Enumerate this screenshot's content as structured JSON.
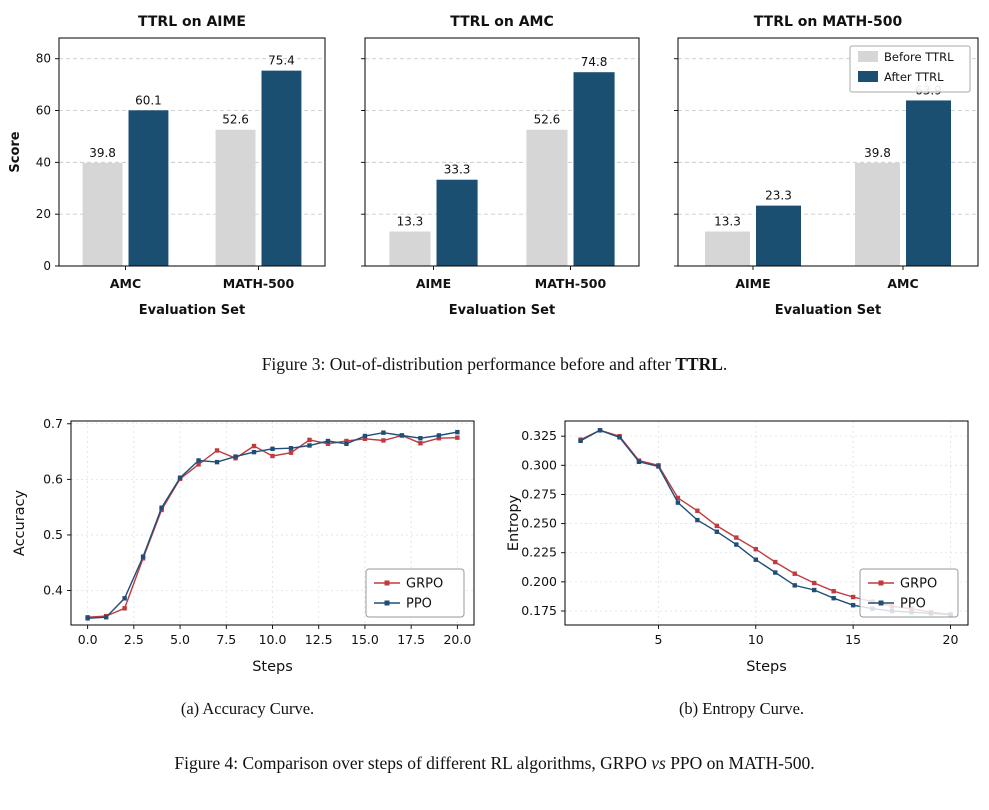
{
  "figure3_caption": {
    "prefix": "Figure 3: Out-of-distribution performance before and after ",
    "bold": "TTRL",
    "suffix": "."
  },
  "figure4_caption": {
    "prefix": "Figure 4: Comparison over steps of different RL algorithms, GRPO ",
    "italic": "vs",
    "suffix": " PPO on MATH-500."
  },
  "colors": {
    "before_ttrl": "#d6d6d6",
    "after_ttrl": "#1b4f72",
    "grpo": "#c03a3e",
    "ppo": "#1f4e79",
    "grid": "#cccccc",
    "axis": "#000000"
  },
  "chart_data": [
    {
      "type": "bar",
      "title": "TTRL on AIME",
      "xlabel": "Evaluation Set",
      "ylabel": "Score",
      "categories": [
        "AMC",
        "MATH-500"
      ],
      "series": [
        {
          "name": "Before TTRL",
          "color": "#d6d6d6",
          "values": [
            39.8,
            52.6
          ]
        },
        {
          "name": "After TTRL",
          "color": "#1b4f72",
          "values": [
            60.1,
            75.4
          ]
        }
      ],
      "ylim": [
        0,
        88
      ],
      "yticks": [
        0,
        20,
        40,
        60,
        80
      ],
      "show_ytick_labels": true,
      "show_legend": false,
      "grid": true
    },
    {
      "type": "bar",
      "title": "TTRL on AMC",
      "xlabel": "Evaluation Set",
      "ylabel": "",
      "categories": [
        "AIME",
        "MATH-500"
      ],
      "series": [
        {
          "name": "Before TTRL",
          "color": "#d6d6d6",
          "values": [
            13.3,
            52.6
          ]
        },
        {
          "name": "After TTRL",
          "color": "#1b4f72",
          "values": [
            33.3,
            74.8
          ]
        }
      ],
      "ylim": [
        0,
        88
      ],
      "yticks": [
        0,
        20,
        40,
        60,
        80
      ],
      "show_ytick_labels": false,
      "show_legend": false,
      "grid": true
    },
    {
      "type": "bar",
      "title": "TTRL on MATH-500",
      "xlabel": "Evaluation Set",
      "ylabel": "",
      "categories": [
        "AIME",
        "AMC"
      ],
      "series": [
        {
          "name": "Before TTRL",
          "color": "#d6d6d6",
          "values": [
            13.3,
            39.8
          ]
        },
        {
          "name": "After TTRL",
          "color": "#1b4f72",
          "values": [
            23.3,
            63.9
          ]
        }
      ],
      "ylim": [
        0,
        88
      ],
      "yticks": [
        0,
        20,
        40,
        60,
        80
      ],
      "show_ytick_labels": false,
      "show_legend": true,
      "legend_position": "top-right",
      "grid": true
    },
    {
      "type": "line",
      "sublabel": "(a) Accuracy Curve.",
      "xlabel": "Steps",
      "ylabel": "Accuracy",
      "xlim": [
        -0.9,
        20.9
      ],
      "ylim": [
        0.338,
        0.705
      ],
      "xticks": [
        0,
        2.5,
        5,
        7.5,
        10,
        12.5,
        15,
        17.5,
        20
      ],
      "xtick_labels": [
        "0.0",
        "2.5",
        "5.0",
        "7.5",
        "10.0",
        "12.5",
        "15.0",
        "17.5",
        "20.0"
      ],
      "yticks": [
        0.4,
        0.5,
        0.6,
        0.7
      ],
      "ytick_labels": [
        "0.4",
        "0.5",
        "0.6",
        "0.7"
      ],
      "legend_position": "bottom-right",
      "grid": true,
      "series": [
        {
          "name": "GRPO",
          "color": "#c03a3e",
          "x": [
            0,
            1,
            2,
            3,
            4,
            5,
            6,
            7,
            8,
            9,
            10,
            11,
            12,
            13,
            14,
            15,
            16,
            17,
            18,
            19,
            20
          ],
          "y": [
            0.352,
            0.354,
            0.368,
            0.458,
            0.545,
            0.601,
            0.627,
            0.652,
            0.638,
            0.66,
            0.642,
            0.648,
            0.671,
            0.664,
            0.669,
            0.673,
            0.67,
            0.679,
            0.665,
            0.674,
            0.675
          ]
        },
        {
          "name": "PPO",
          "color": "#1f4e79",
          "x": [
            0,
            1,
            2,
            3,
            4,
            5,
            6,
            7,
            8,
            9,
            10,
            11,
            12,
            13,
            14,
            15,
            16,
            17,
            18,
            19,
            20
          ],
          "y": [
            0.35,
            0.352,
            0.386,
            0.461,
            0.549,
            0.603,
            0.634,
            0.631,
            0.641,
            0.649,
            0.655,
            0.656,
            0.661,
            0.669,
            0.664,
            0.678,
            0.684,
            0.679,
            0.674,
            0.679,
            0.685
          ]
        }
      ]
    },
    {
      "type": "line",
      "sublabel": "(b) Entropy Curve.",
      "xlabel": "Steps",
      "ylabel": "Entropy",
      "xlim": [
        0.2,
        20.9
      ],
      "ylim": [
        0.163,
        0.338
      ],
      "xticks": [
        5,
        10,
        15,
        20
      ],
      "xtick_labels": [
        "5",
        "10",
        "15",
        "20"
      ],
      "yticks": [
        0.175,
        0.2,
        0.225,
        0.25,
        0.275,
        0.3,
        0.325
      ],
      "ytick_labels": [
        "0.175",
        "0.200",
        "0.225",
        "0.250",
        "0.275",
        "0.300",
        "0.325"
      ],
      "legend_position": "bottom-right",
      "grid": true,
      "series": [
        {
          "name": "GRPO",
          "color": "#c03a3e",
          "x": [
            1,
            2,
            3,
            4,
            5,
            6,
            7,
            8,
            9,
            10,
            11,
            12,
            13,
            14,
            15,
            16,
            17,
            18,
            19,
            20
          ],
          "y": [
            0.322,
            0.33,
            0.325,
            0.304,
            0.3,
            0.272,
            0.261,
            0.248,
            0.238,
            0.228,
            0.217,
            0.207,
            0.199,
            0.192,
            0.187,
            0.183,
            0.179,
            0.177,
            0.174,
            0.172
          ]
        },
        {
          "name": "PPO",
          "color": "#1f4e79",
          "x": [
            1,
            2,
            3,
            4,
            5,
            6,
            7,
            8,
            9,
            10,
            11,
            12,
            13,
            14,
            15,
            16,
            17,
            18,
            19,
            20
          ],
          "y": [
            0.321,
            0.33,
            0.324,
            0.303,
            0.299,
            0.268,
            0.253,
            0.243,
            0.232,
            0.219,
            0.208,
            0.197,
            0.193,
            0.186,
            0.18,
            0.177,
            0.175,
            0.174,
            0.173,
            0.172
          ]
        }
      ]
    }
  ]
}
